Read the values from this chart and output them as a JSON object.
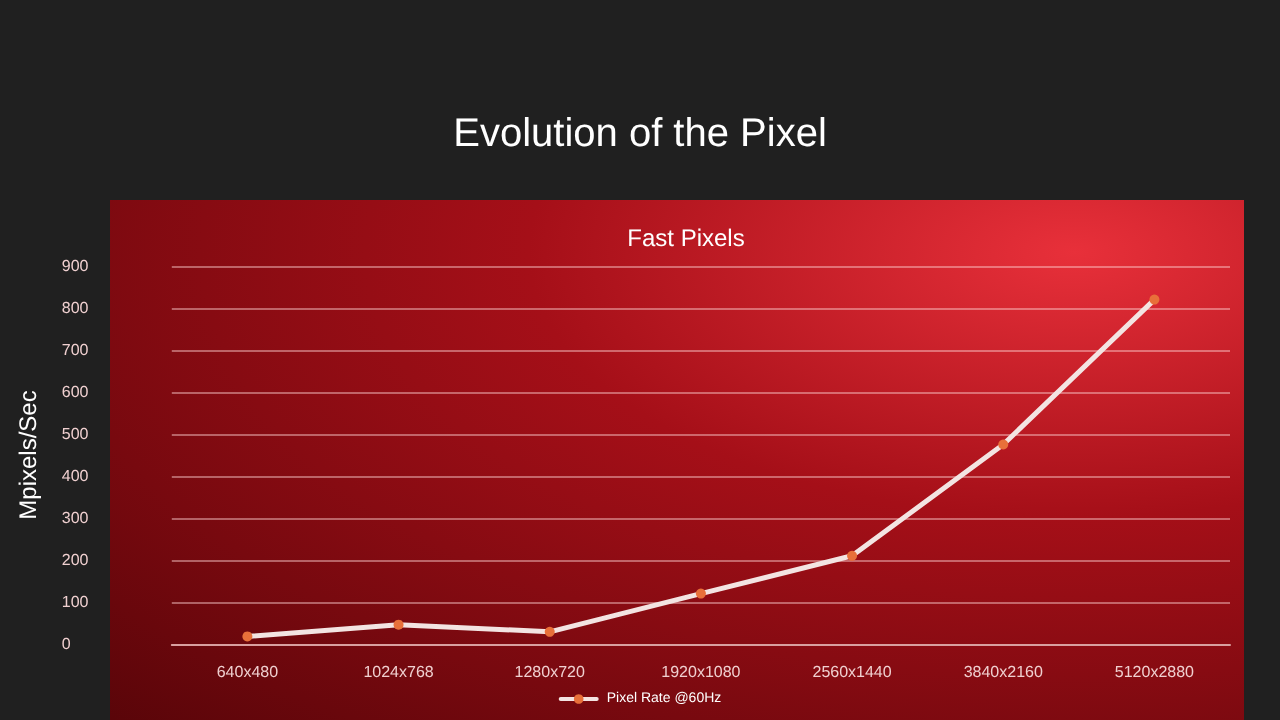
{
  "chart_data": {
    "type": "line",
    "title": "Evolution of the Pixel",
    "subtitle": "Fast Pixels",
    "ylabel": "Mpixels/Sec",
    "categories": [
      "640x480",
      "1024x768",
      "1280x720",
      "1920x1080",
      "2560x1440",
      "3840x2160",
      "5120x2880"
    ],
    "series": [
      {
        "name": "Pixel Rate @60Hz",
        "color": "#f3e4e2",
        "values": [
          18,
          46,
          29,
          120,
          210,
          475,
          820
        ]
      }
    ],
    "ylim": [
      0,
      900
    ],
    "yticks": [
      0,
      100,
      200,
      300,
      400,
      500,
      600,
      700,
      800,
      900
    ],
    "grid": "y",
    "legend": "bottom",
    "marker": "circle",
    "line_style": "solid"
  }
}
